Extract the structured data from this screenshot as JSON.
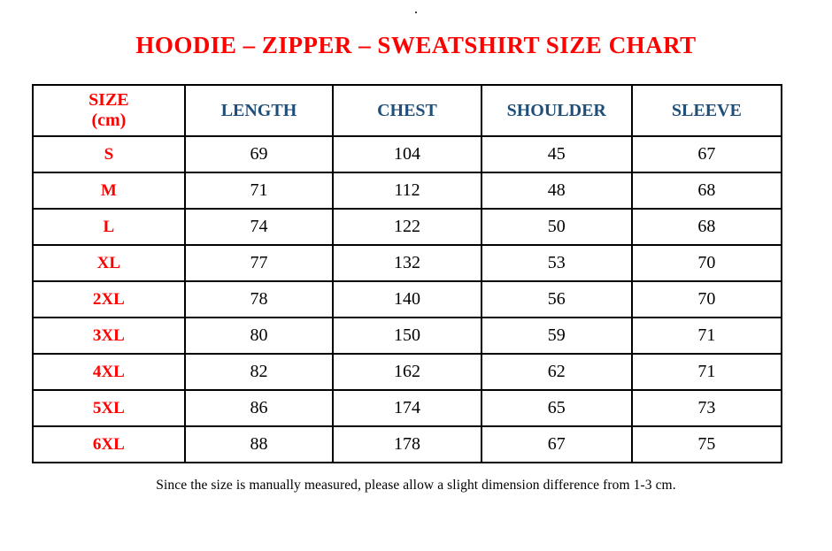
{
  "page": {
    "top_mark": "."
  },
  "title": "HOODIE – ZIPPER – SWEATSHIRT SIZE CHART",
  "table": {
    "size_header": {
      "line1": "SIZE",
      "line2": "(cm)"
    },
    "columns": [
      "LENGTH",
      "CHEST",
      "SHOULDER",
      "SLEEVE"
    ],
    "rows": [
      {
        "size": "S",
        "length": "69",
        "chest": "104",
        "shoulder": "45",
        "sleeve": "67"
      },
      {
        "size": "M",
        "length": "71",
        "chest": "112",
        "shoulder": "48",
        "sleeve": "68"
      },
      {
        "size": "L",
        "length": "74",
        "chest": "122",
        "shoulder": "50",
        "sleeve": "68"
      },
      {
        "size": "XL",
        "length": "77",
        "chest": "132",
        "shoulder": "53",
        "sleeve": "70"
      },
      {
        "size": "2XL",
        "length": "78",
        "chest": "140",
        "shoulder": "56",
        "sleeve": "70"
      },
      {
        "size": "3XL",
        "length": "80",
        "chest": "150",
        "shoulder": "59",
        "sleeve": "71"
      },
      {
        "size": "4XL",
        "length": "82",
        "chest": "162",
        "shoulder": "62",
        "sleeve": "71"
      },
      {
        "size": "5XL",
        "length": "86",
        "chest": "174",
        "shoulder": "65",
        "sleeve": "73"
      },
      {
        "size": "6XL",
        "length": "88",
        "chest": "178",
        "shoulder": "67",
        "sleeve": "75"
      }
    ]
  },
  "note": "Since the size is manually measured, please allow a slight dimension difference from 1-3 cm.",
  "colors": {
    "title_red": "#fe0000",
    "header_blue": "#1f4e79",
    "text_black": "#000000",
    "border_black": "#000000",
    "background": "#ffffff"
  }
}
